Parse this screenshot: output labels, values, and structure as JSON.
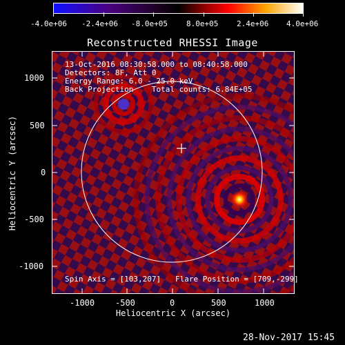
{
  "colorbar": {
    "ticks": [
      "-4.0e+06",
      "-2.4e+06",
      "-8.0e+05",
      "8.0e+05",
      "2.4e+06",
      "4.0e+06"
    ],
    "stops": [
      "#1010ff",
      "#4b0082",
      "#000000",
      "#ff0000",
      "#ffa500",
      "#ffffff"
    ]
  },
  "plot": {
    "title": "Reconstructed RHESSI Image",
    "xlabel": "Heliocentric X (arcsec)",
    "ylabel": "Heliocentric Y (arcsec)",
    "xticks": [
      "-1000",
      "-500",
      "0",
      "500",
      "1000"
    ],
    "yticks": [
      "1000",
      "500",
      "0",
      "-500",
      "-1000"
    ],
    "info_lines": [
      "13-Oct-2016 08:30:58.000 to 08:40:58.000",
      "Detectors: 8F, Att 0",
      "Energy Range: 6.0 - 25.0 keV",
      "Back Projection    Total counts: 6.84E+05"
    ],
    "spin_axis": "Spin Axis = [103,207]",
    "flare_position": "Flare Position = [709,-299]"
  },
  "footer": {
    "date": "28-Nov-2017 15:45"
  }
}
